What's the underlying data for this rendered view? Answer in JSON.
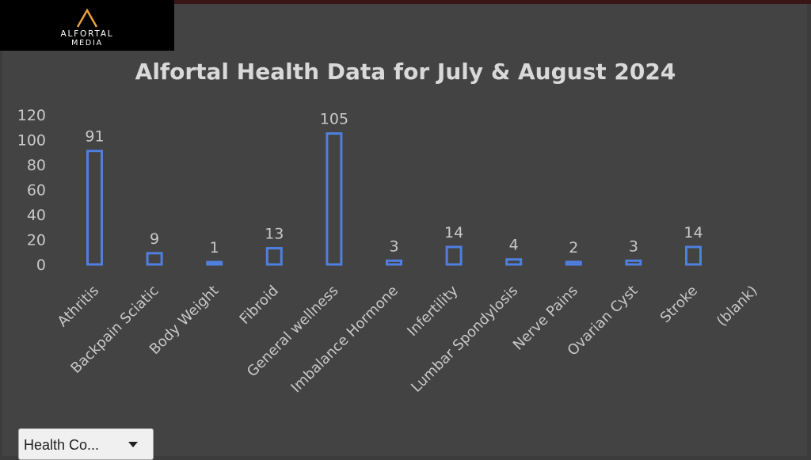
{
  "brand": {
    "name_line1": "ALFORTAL",
    "name_line2": "MEDIA",
    "mark_color": "#e8a23a"
  },
  "chart_data": {
    "type": "bar",
    "title": "Alfortal Health Data for July & August 2024",
    "categories": [
      "Athritis",
      "Backpain Sciatic",
      "Body Weight",
      "Fibroid",
      "General wellness",
      "Imbalance Hormone",
      "Infertility",
      "Lumbar Spondylosis",
      "Nerve Pains",
      "Ovarian Cyst",
      "Stroke",
      "(blank)"
    ],
    "values": [
      91,
      9,
      1,
      13,
      105,
      3,
      14,
      4,
      2,
      3,
      14,
      null
    ],
    "data_labels": [
      "91",
      "9",
      "1",
      "13",
      "105",
      "3",
      "14",
      "4",
      "2",
      "3",
      "14",
      ""
    ],
    "ylim": [
      0,
      120
    ],
    "yticks": [
      0,
      20,
      40,
      60,
      80,
      100,
      120
    ],
    "xlabel": "",
    "ylabel": "",
    "grid": false,
    "legend": "none",
    "bar_color": "#4f7fdf",
    "background": "#434343"
  },
  "filter": {
    "label": "Health Co..."
  }
}
